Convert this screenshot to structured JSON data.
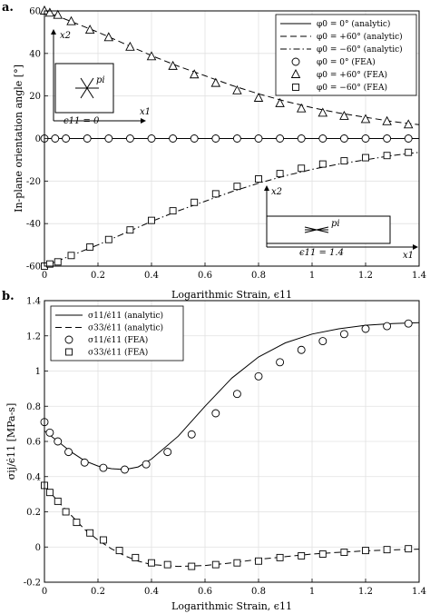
{
  "chart_data": [
    {
      "panel": "a.",
      "type": "line",
      "xlabel": "Logarithmic Strain, ϵ11",
      "ylabel": "In-plane orientation angle [°]",
      "xlim": [
        0,
        1.4
      ],
      "ylim": [
        -60,
        60
      ],
      "xticks": [
        "0",
        "0.2",
        "0.4",
        "0.6",
        "0.8",
        "1",
        "1.2",
        "1.4"
      ],
      "yticks": [
        "-60",
        "-40",
        "-20",
        "0",
        "20",
        "40",
        "60"
      ],
      "legend": {
        "position": "top-right",
        "entries": [
          {
            "label": "φ0 = 0° (analytic)",
            "series": "a0"
          },
          {
            "label": "φ0 = +60° (analytic)",
            "series": "ap"
          },
          {
            "label": "φ0 = −60° (analytic)",
            "series": "am"
          },
          {
            "label": "φ0 = 0° (FEA)",
            "series": "f0"
          },
          {
            "label": "φ0 = +60° (FEA)",
            "series": "fp"
          },
          {
            "label": "φ0 = −60° (FEA)",
            "series": "fm"
          }
        ]
      },
      "series": [
        {
          "id": "a0",
          "style": "solid",
          "x": [
            0,
            1.4
          ],
          "y": [
            0,
            0
          ]
        },
        {
          "id": "ap",
          "style": "dashed",
          "x": [
            0,
            0.1,
            0.2,
            0.3,
            0.4,
            0.5,
            0.6,
            0.7,
            0.8,
            0.9,
            1.0,
            1.1,
            1.2,
            1.3,
            1.4
          ],
          "y": [
            60,
            55,
            50,
            44.5,
            39,
            34,
            29.5,
            25,
            21,
            17.5,
            14.5,
            12,
            10,
            8,
            6.5
          ]
        },
        {
          "id": "am",
          "style": "dashdot",
          "x": [
            0,
            0.1,
            0.2,
            0.3,
            0.4,
            0.5,
            0.6,
            0.7,
            0.8,
            0.9,
            1.0,
            1.1,
            1.2,
            1.3,
            1.4
          ],
          "y": [
            -60,
            -55,
            -50,
            -44.5,
            -39,
            -34,
            -29.5,
            -25,
            -21,
            -17.5,
            -14.5,
            -12,
            -10,
            -8,
            -6.5
          ]
        },
        {
          "id": "f0",
          "marker": "circle",
          "x": [
            0,
            0.04,
            0.08,
            0.16,
            0.24,
            0.32,
            0.4,
            0.48,
            0.56,
            0.64,
            0.72,
            0.8,
            0.88,
            0.96,
            1.04,
            1.12,
            1.2,
            1.28,
            1.36
          ],
          "y": [
            0,
            0,
            0,
            0,
            0,
            0,
            0,
            0,
            0,
            0,
            0,
            0,
            0,
            0,
            0,
            0,
            0,
            0,
            0
          ]
        },
        {
          "id": "fp",
          "marker": "triangle",
          "x": [
            0,
            0.02,
            0.05,
            0.1,
            0.17,
            0.24,
            0.32,
            0.4,
            0.48,
            0.56,
            0.64,
            0.72,
            0.8,
            0.88,
            0.96,
            1.04,
            1.12,
            1.2,
            1.28,
            1.36
          ],
          "y": [
            60,
            59,
            58,
            55,
            51,
            47.5,
            43,
            38.5,
            34,
            30,
            26,
            22.5,
            19,
            16.5,
            14,
            12,
            10.5,
            9,
            8,
            6.5
          ]
        },
        {
          "id": "fm",
          "marker": "square",
          "x": [
            0,
            0.02,
            0.05,
            0.1,
            0.17,
            0.24,
            0.32,
            0.4,
            0.48,
            0.56,
            0.64,
            0.72,
            0.8,
            0.88,
            0.96,
            1.04,
            1.12,
            1.2,
            1.28,
            1.36
          ],
          "y": [
            -60,
            -59,
            -58,
            -55,
            -51,
            -47.5,
            -43,
            -38.5,
            -34,
            -30,
            -26,
            -22.5,
            -19,
            -16.5,
            -14,
            -12,
            -10.5,
            -9,
            -8,
            -6.5
          ]
        }
      ],
      "insets": [
        {
          "position": "upper-left",
          "axis_up": "x2",
          "axis_right": "x1",
          "label": "pi",
          "strain": "ϵ11 = 0"
        },
        {
          "position": "lower-right",
          "axis_up": "x2",
          "axis_right": "x1",
          "label": "pi",
          "strain": "ϵ11 = 1.4"
        }
      ]
    },
    {
      "panel": "b.",
      "type": "line",
      "xlabel": "Logarithmic Strain, ϵ11",
      "ylabel": "σij/ϵ̇11 [MPa-s]",
      "xlim": [
        0,
        1.4
      ],
      "ylim": [
        -0.2,
        1.4
      ],
      "xticks": [
        "0",
        "0.2",
        "0.4",
        "0.6",
        "0.8",
        "1",
        "1.2",
        "1.4"
      ],
      "yticks": [
        "-0.2",
        "0",
        "0.2",
        "0.4",
        "0.6",
        "0.8",
        "1",
        "1.2",
        "1.4"
      ],
      "legend": {
        "position": "top-left",
        "entries": [
          {
            "label": "σ11/ϵ̇11 (analytic)",
            "series": "s11a"
          },
          {
            "label": "σ33/ϵ̇11 (analytic)",
            "series": "s33a"
          },
          {
            "label": "σ11/ϵ̇11 (FEA)",
            "series": "s11f"
          },
          {
            "label": "σ33/ϵ̇11 (FEA)",
            "series": "s33f"
          }
        ]
      },
      "series": [
        {
          "id": "s11a",
          "style": "solid",
          "x": [
            0,
            0.05,
            0.1,
            0.15,
            0.2,
            0.25,
            0.3,
            0.35,
            0.4,
            0.5,
            0.6,
            0.7,
            0.8,
            0.9,
            1.0,
            1.1,
            1.2,
            1.3,
            1.4
          ],
          "y": [
            0.66,
            0.6,
            0.54,
            0.49,
            0.46,
            0.445,
            0.44,
            0.455,
            0.5,
            0.63,
            0.8,
            0.96,
            1.08,
            1.16,
            1.21,
            1.24,
            1.26,
            1.27,
            1.275
          ]
        },
        {
          "id": "s33a",
          "style": "dashed",
          "x": [
            0,
            0.05,
            0.1,
            0.15,
            0.2,
            0.25,
            0.3,
            0.35,
            0.4,
            0.5,
            0.6,
            0.7,
            0.8,
            0.9,
            1.0,
            1.1,
            1.2,
            1.3,
            1.4
          ],
          "y": [
            0.35,
            0.26,
            0.18,
            0.1,
            0.04,
            -0.01,
            -0.05,
            -0.08,
            -0.1,
            -0.11,
            -0.105,
            -0.09,
            -0.07,
            -0.055,
            -0.04,
            -0.03,
            -0.022,
            -0.016,
            -0.012
          ]
        },
        {
          "id": "s11f",
          "marker": "circle",
          "x": [
            0,
            0.02,
            0.05,
            0.09,
            0.15,
            0.22,
            0.3,
            0.38,
            0.46,
            0.55,
            0.64,
            0.72,
            0.8,
            0.88,
            0.96,
            1.04,
            1.12,
            1.2,
            1.28,
            1.36
          ],
          "y": [
            0.71,
            0.65,
            0.6,
            0.54,
            0.48,
            0.45,
            0.44,
            0.47,
            0.54,
            0.64,
            0.76,
            0.87,
            0.97,
            1.05,
            1.12,
            1.17,
            1.21,
            1.24,
            1.255,
            1.27
          ]
        },
        {
          "id": "s33f",
          "marker": "square",
          "x": [
            0,
            0.02,
            0.05,
            0.08,
            0.12,
            0.17,
            0.22,
            0.28,
            0.34,
            0.4,
            0.46,
            0.55,
            0.64,
            0.72,
            0.8,
            0.88,
            0.96,
            1.04,
            1.12,
            1.2,
            1.28,
            1.36
          ],
          "y": [
            0.35,
            0.31,
            0.26,
            0.2,
            0.14,
            0.08,
            0.04,
            -0.02,
            -0.06,
            -0.09,
            -0.1,
            -0.11,
            -0.1,
            -0.09,
            -0.08,
            -0.06,
            -0.05,
            -0.04,
            -0.03,
            -0.02,
            -0.015,
            -0.01
          ]
        }
      ]
    }
  ]
}
